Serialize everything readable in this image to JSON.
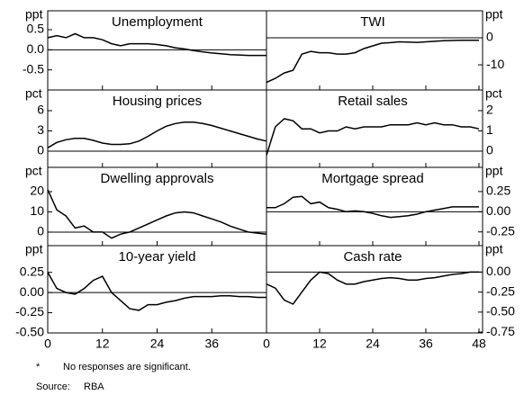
{
  "chart_data": [
    {
      "type": "line",
      "title": "Unemployment",
      "ylabel": "ppt",
      "axis_side": "left",
      "color": "#000000",
      "x": [
        0,
        2,
        4,
        6,
        8,
        10,
        12,
        14,
        16,
        18,
        20,
        22,
        24,
        26,
        28,
        30,
        32,
        34,
        36,
        38,
        40,
        42,
        44,
        46,
        48
      ],
      "values": [
        0.3,
        0.35,
        0.3,
        0.4,
        0.3,
        0.3,
        0.25,
        0.15,
        0.1,
        0.15,
        0.15,
        0.15,
        0.13,
        0.1,
        0.05,
        0.02,
        -0.02,
        -0.05,
        -0.08,
        -0.1,
        -0.12,
        -0.13,
        -0.14,
        -0.14,
        -0.14
      ],
      "xlim": [
        0,
        48
      ],
      "xticks": [
        0,
        12,
        24,
        36
      ],
      "ylim": [
        -1,
        0.97
      ],
      "yticks": [
        0.5,
        {
          "value": 0,
          "label": "0.0"
        },
        -0.5
      ]
    },
    {
      "type": "line",
      "title": "TWI",
      "ylabel": "ppt",
      "axis_side": "right",
      "color": "#000000",
      "x": [
        0,
        2,
        4,
        6,
        8,
        10,
        12,
        14,
        16,
        18,
        20,
        22,
        24,
        26,
        28,
        30,
        32,
        34,
        36,
        38,
        40,
        42,
        44,
        46,
        48
      ],
      "values": [
        -16.5,
        -15,
        -13,
        -12,
        -6,
        -5,
        -5.5,
        -5.5,
        -6,
        -6,
        -5.5,
        -4,
        -3,
        -2,
        -1.8,
        -1.5,
        -1.6,
        -1.7,
        -1.5,
        -1.3,
        -1.1,
        -1,
        -0.9,
        -0.9,
        -0.9
      ],
      "xlim": [
        0,
        48
      ],
      "xticks": [
        0,
        12,
        24,
        36,
        48
      ],
      "ylim": [
        -19.3,
        10
      ],
      "yticks": [
        0,
        -10
      ]
    },
    {
      "type": "line",
      "title": "Housing prices",
      "ylabel": "pct",
      "axis_side": "left",
      "color": "#000000",
      "x": [
        0,
        2,
        4,
        6,
        8,
        10,
        12,
        14,
        16,
        18,
        20,
        22,
        24,
        26,
        28,
        30,
        32,
        34,
        36,
        38,
        40,
        42,
        44,
        46,
        48
      ],
      "values": [
        0.5,
        1.3,
        1.7,
        1.9,
        1.9,
        1.6,
        1.2,
        1.0,
        1.0,
        1.1,
        1.5,
        2.2,
        3.0,
        3.7,
        4.1,
        4.3,
        4.3,
        4.1,
        3.8,
        3.4,
        3.0,
        2.6,
        2.2,
        1.8,
        1.5
      ],
      "xlim": [
        0,
        48
      ],
      "xticks": [
        0,
        12,
        24,
        36
      ],
      "ylim": [
        -2.4,
        9.07
      ],
      "yticks": [
        6,
        3,
        0
      ]
    },
    {
      "type": "line",
      "title": "Retail sales",
      "ylabel": "pct",
      "axis_side": "right",
      "color": "#000000",
      "x": [
        0,
        2,
        4,
        6,
        8,
        10,
        12,
        14,
        16,
        18,
        20,
        22,
        24,
        26,
        28,
        30,
        32,
        34,
        36,
        38,
        40,
        42,
        44,
        46,
        48
      ],
      "values": [
        -0.2,
        1.2,
        1.6,
        1.5,
        1.1,
        1.1,
        0.9,
        1.0,
        1.0,
        1.2,
        1.1,
        1.2,
        1.2,
        1.2,
        1.3,
        1.3,
        1.3,
        1.4,
        1.3,
        1.4,
        1.3,
        1.3,
        1.2,
        1.2,
        1.1
      ],
      "xlim": [
        0,
        48
      ],
      "xticks": [
        0,
        12,
        24,
        36,
        48
      ],
      "ylim": [
        -0.8,
        3.02
      ],
      "yticks": [
        2,
        1,
        0
      ]
    },
    {
      "type": "line",
      "title": "Dwelling approvals",
      "ylabel": "pct",
      "axis_side": "left",
      "color": "#000000",
      "x": [
        0,
        2,
        4,
        6,
        8,
        10,
        12,
        14,
        16,
        18,
        20,
        22,
        24,
        26,
        28,
        30,
        32,
        34,
        36,
        38,
        40,
        42,
        44,
        46,
        48
      ],
      "values": [
        21,
        11,
        8,
        2,
        3,
        0,
        0,
        -3,
        -1,
        0,
        2,
        4,
        6,
        8,
        9.5,
        10,
        9.5,
        8,
        6.5,
        5,
        3,
        1.5,
        0,
        -0.5,
        -1
      ],
      "xlim": [
        0,
        48
      ],
      "xticks": [
        0,
        12,
        24,
        36
      ],
      "ylim": [
        -6.7,
        32
      ],
      "yticks": [
        20,
        10,
        0
      ]
    },
    {
      "type": "line",
      "title": "Mortgage spread",
      "ylabel": "ppt",
      "axis_side": "right",
      "color": "#000000",
      "x": [
        0,
        2,
        4,
        6,
        8,
        10,
        12,
        14,
        16,
        18,
        20,
        22,
        24,
        26,
        28,
        30,
        32,
        34,
        36,
        38,
        40,
        42,
        44,
        46,
        48
      ],
      "values": [
        0.05,
        0.05,
        0.1,
        0.18,
        0.19,
        0.1,
        0.12,
        0.05,
        0.03,
        0.0,
        0.01,
        0.0,
        -0.02,
        -0.05,
        -0.07,
        -0.06,
        -0.05,
        -0.03,
        0.0,
        0.02,
        0.04,
        0.06,
        0.06,
        0.06,
        0.06
      ],
      "xlim": [
        0,
        48
      ],
      "xticks": [
        0,
        12,
        24,
        36,
        48
      ],
      "ylim": [
        -0.42,
        0.55
      ],
      "yticks": [
        0.25,
        {
          "value": 0,
          "label": "0.00"
        },
        -0.25
      ]
    },
    {
      "type": "line",
      "title": "10-year yield",
      "ylabel": "ppt",
      "axis_side": "left",
      "color": "#000000",
      "x": [
        0,
        2,
        4,
        6,
        8,
        10,
        12,
        14,
        16,
        18,
        20,
        22,
        24,
        26,
        28,
        30,
        32,
        34,
        36,
        38,
        40,
        42,
        44,
        46,
        48
      ],
      "values": [
        0.25,
        0.05,
        0.0,
        -0.02,
        0.05,
        0.15,
        0.2,
        0.0,
        -0.1,
        -0.2,
        -0.22,
        -0.15,
        -0.15,
        -0.12,
        -0.1,
        -0.07,
        -0.05,
        -0.05,
        -0.05,
        -0.04,
        -0.04,
        -0.05,
        -0.05,
        -0.06,
        -0.06
      ],
      "xlim": [
        0,
        48
      ],
      "xticks": [
        0,
        12,
        24,
        36
      ],
      "ylim": [
        -0.5,
        0.58
      ],
      "yticks": [
        0.25,
        {
          "value": 0,
          "label": "0.00"
        },
        -0.25,
        {
          "value": -0.5,
          "label": "-0.50"
        }
      ]
    },
    {
      "type": "line",
      "title": "Cash rate",
      "ylabel": "ppt",
      "axis_side": "right",
      "color": "#000000",
      "x": [
        0,
        2,
        4,
        6,
        8,
        10,
        12,
        14,
        16,
        18,
        20,
        22,
        24,
        26,
        28,
        30,
        32,
        34,
        36,
        38,
        40,
        42,
        44,
        46,
        48
      ],
      "values": [
        -0.15,
        -0.2,
        -0.35,
        -0.4,
        -0.25,
        -0.1,
        0.0,
        -0.02,
        -0.1,
        -0.15,
        -0.15,
        -0.12,
        -0.1,
        -0.08,
        -0.07,
        -0.08,
        -0.1,
        -0.1,
        -0.08,
        -0.07,
        -0.05,
        -0.03,
        -0.02,
        0.0,
        0.0
      ],
      "xlim": [
        0,
        48
      ],
      "xticks": [
        0,
        12,
        24,
        36,
        48
      ],
      "ylim": [
        -0.76,
        0.33
      ],
      "yticks": [
        {
          "value": 0,
          "label": "0.00"
        },
        -0.25,
        {
          "value": -0.5,
          "label": "-0.50"
        },
        -0.75
      ]
    }
  ],
  "notes": {
    "marker": "*",
    "text": "No responses are significant.",
    "source_label": "Source:",
    "source": "RBA"
  }
}
